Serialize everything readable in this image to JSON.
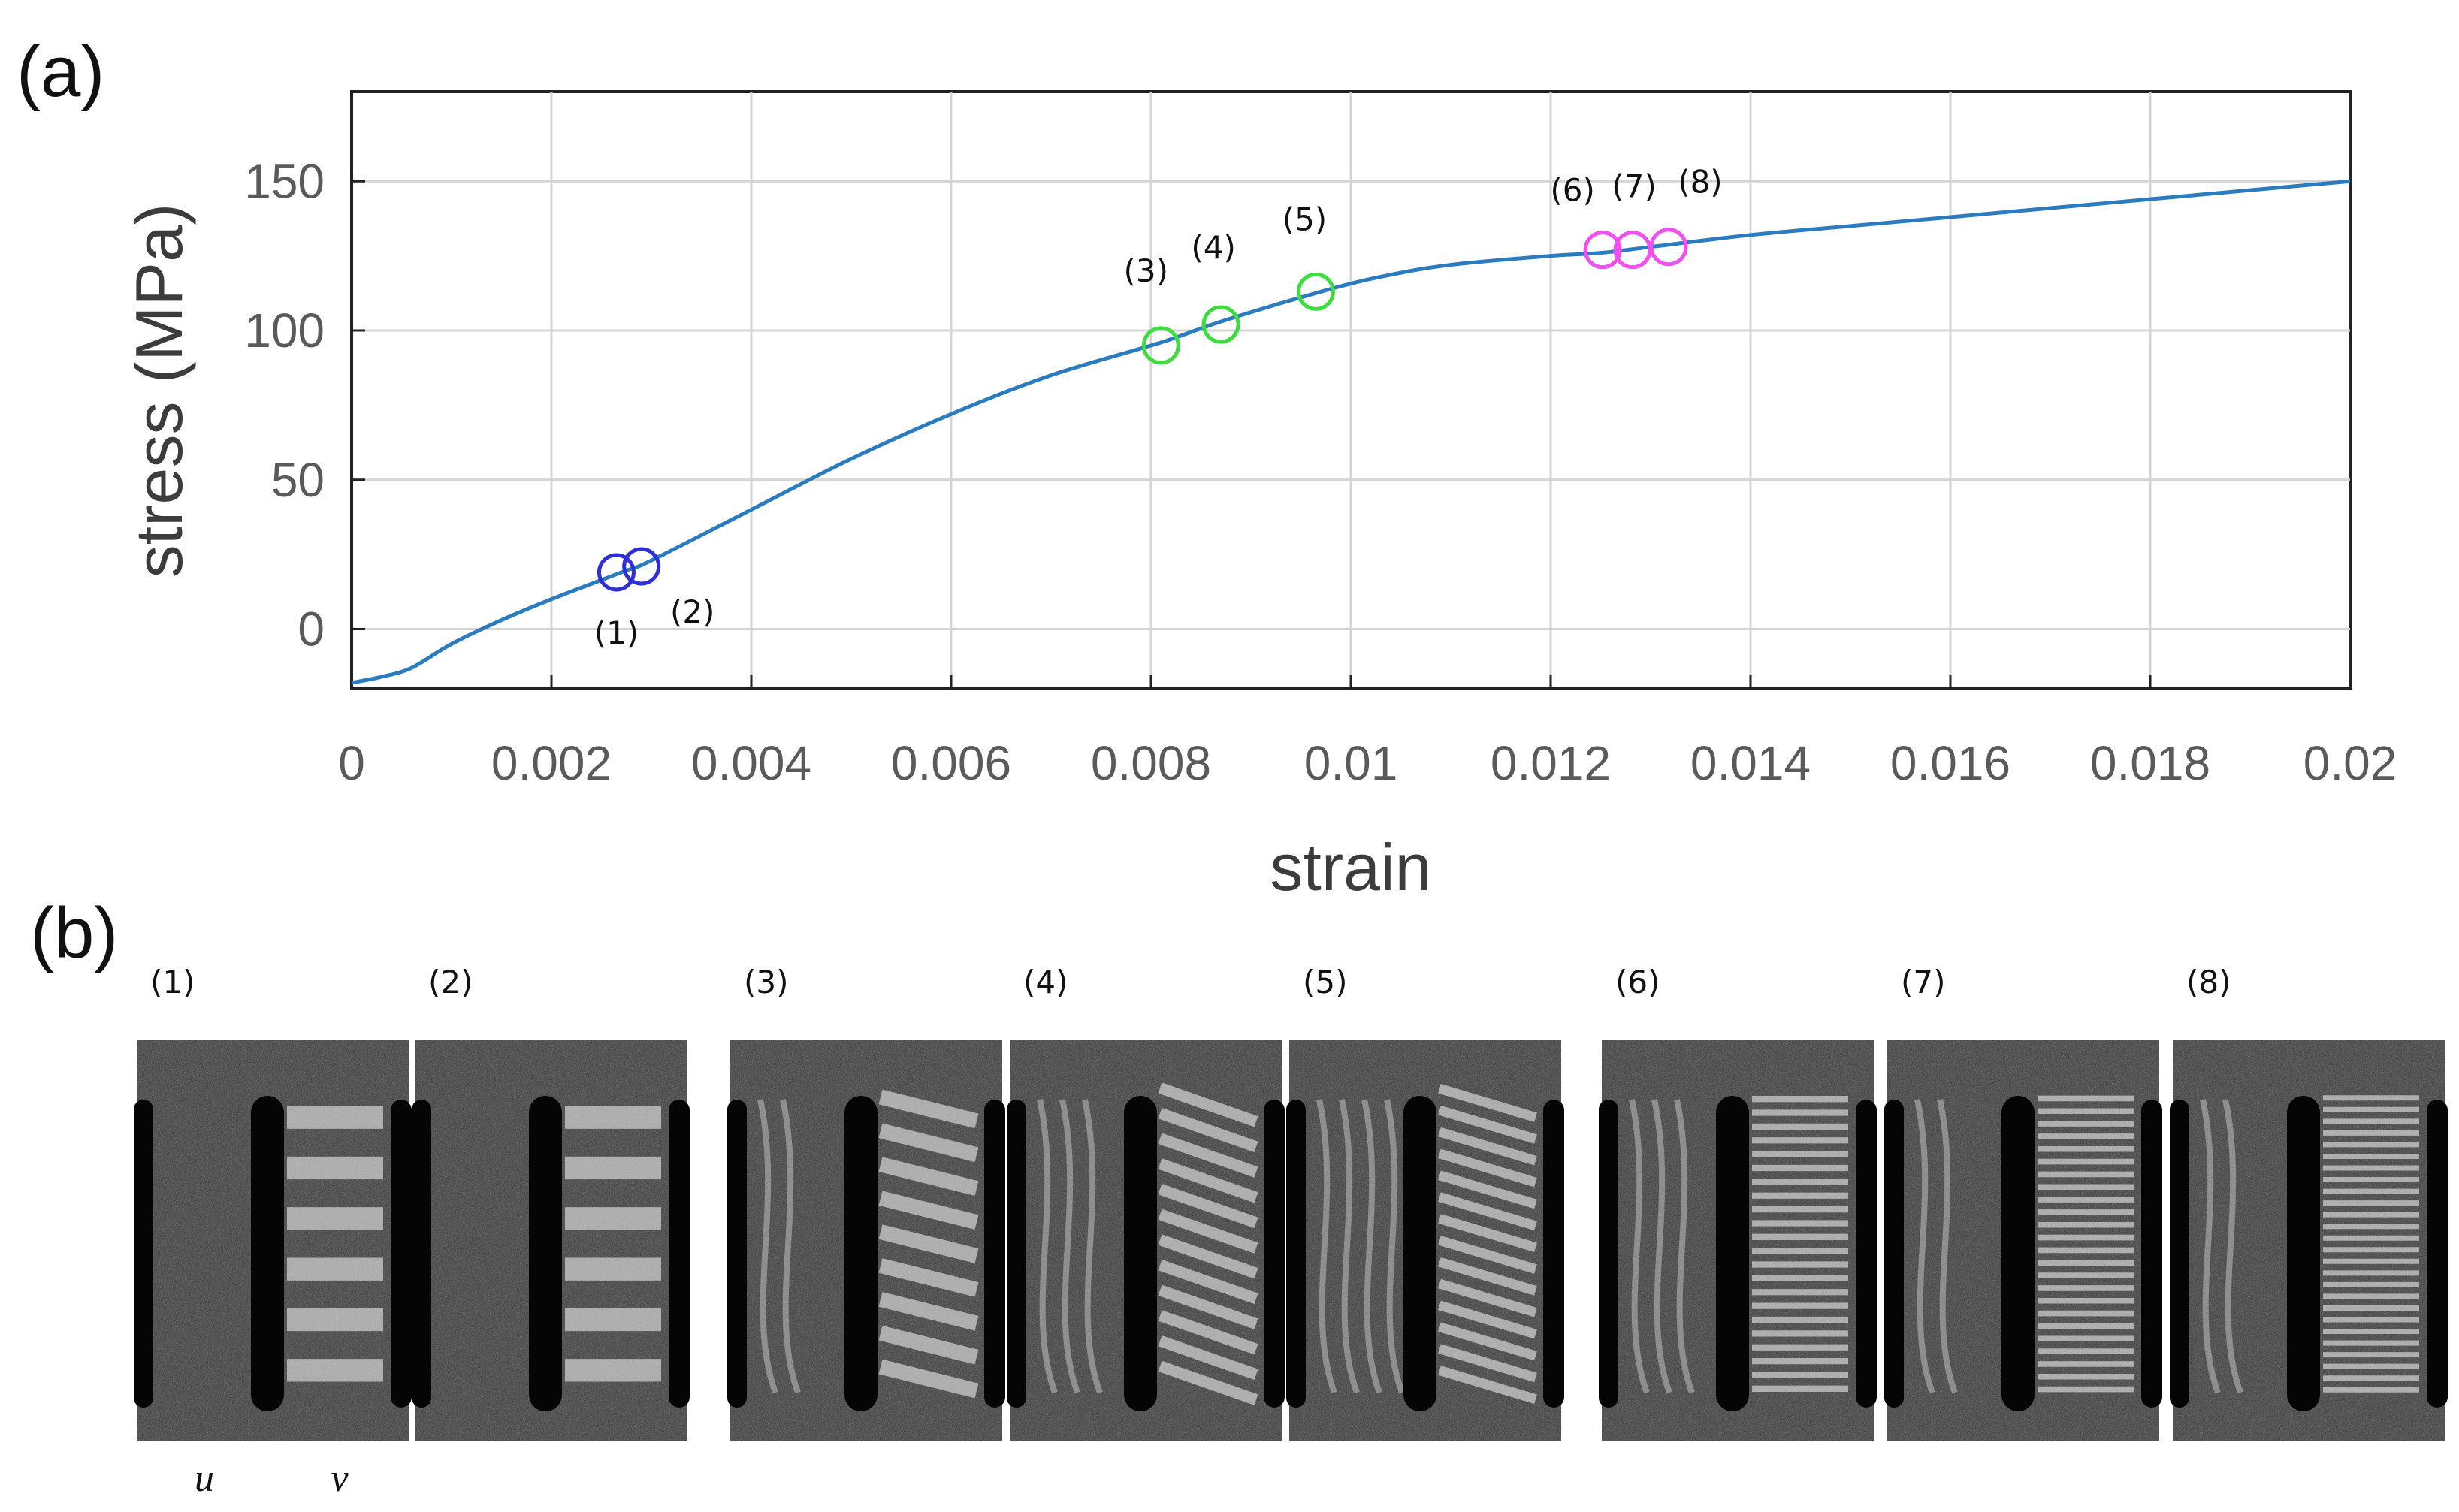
{
  "panels": {
    "a_label": "(a)",
    "b_label": "(b)"
  },
  "chart_data": {
    "type": "line",
    "title": "",
    "xlabel": "strain",
    "ylabel": "stress (MPa)",
    "xlim": [
      0,
      0.02
    ],
    "ylim": [
      -20,
      180
    ],
    "grid": true,
    "x_ticks": [
      0,
      0.002,
      0.004,
      0.006,
      0.008,
      0.01,
      0.012,
      0.014,
      0.016,
      0.018,
      0.02
    ],
    "x_tick_labels": [
      "0",
      "0.002",
      "0.004",
      "0.006",
      "0.008",
      "0.01",
      "0.012",
      "0.014",
      "0.016",
      "0.018",
      "0.02"
    ],
    "y_ticks": [
      0,
      50,
      100,
      150
    ],
    "y_tick_labels": [
      "0",
      "50",
      "100",
      "150"
    ],
    "line_color": "#2b7bbf",
    "curve": {
      "x": [
        0,
        0.0003,
        0.0006,
        0.001,
        0.0015,
        0.002,
        0.0027,
        0.003,
        0.004,
        0.005,
        0.006,
        0.007,
        0.0081,
        0.0087,
        0.0097,
        0.0103,
        0.011,
        0.012,
        0.0125,
        0.013,
        0.014,
        0.015,
        0.016,
        0.017,
        0.018,
        0.019,
        0.02
      ],
      "y": [
        -18,
        -16,
        -13,
        -5,
        3,
        10,
        19,
        23,
        40,
        57,
        72,
        85,
        96,
        103,
        113,
        118,
        122,
        125,
        126,
        128,
        132,
        135,
        138,
        141,
        144,
        147,
        150
      ]
    },
    "markers": [
      {
        "label": "(1)",
        "x": 0.00265,
        "y": 19,
        "color": "#2f2fd6"
      },
      {
        "label": "(2)",
        "x": 0.0029,
        "y": 21,
        "color": "#2f2fd6"
      },
      {
        "label": "(3)",
        "x": 0.0081,
        "y": 95,
        "color": "#3fdc3f"
      },
      {
        "label": "(4)",
        "x": 0.0087,
        "y": 102,
        "color": "#3fdc3f"
      },
      {
        "label": "(5)",
        "x": 0.00965,
        "y": 113,
        "color": "#3fdc3f"
      },
      {
        "label": "(6)",
        "x": 0.01252,
        "y": 127,
        "color": "#f050f0"
      },
      {
        "label": "(7)",
        "x": 0.01282,
        "y": 127,
        "color": "#f050f0"
      },
      {
        "label": "(8)",
        "x": 0.01318,
        "y": 128,
        "color": "#f050f0"
      }
    ]
  },
  "fringe_panels": [
    {
      "label": "(1)",
      "n_fringes": 6,
      "tilt": 0,
      "left_fringes": 0
    },
    {
      "label": "(2)",
      "n_fringes": 6,
      "tilt": 0,
      "left_fringes": 0
    },
    {
      "label": "(3)",
      "n_fringes": 9,
      "tilt": 0.25,
      "left_fringes": 2
    },
    {
      "label": "(4)",
      "n_fringes": 12,
      "tilt": 0.35,
      "left_fringes": 3
    },
    {
      "label": "(5)",
      "n_fringes": 14,
      "tilt": 0.3,
      "left_fringes": 4
    },
    {
      "label": "(6)",
      "n_fringes": 22,
      "tilt": 0,
      "left_fringes": 3
    },
    {
      "label": "(7)",
      "n_fringes": 24,
      "tilt": 0,
      "left_fringes": 2
    },
    {
      "label": "(8)",
      "n_fringes": 26,
      "tilt": 0,
      "left_fringes": 2
    }
  ],
  "uv_labels": {
    "u": "u",
    "v": "v"
  }
}
